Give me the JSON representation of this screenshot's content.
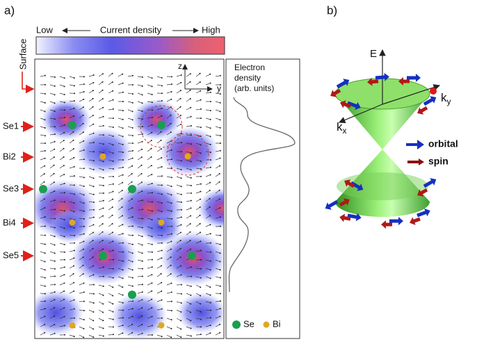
{
  "panel_a": {
    "label": "a)",
    "colorbar": {
      "low": "Low",
      "title": "Current density",
      "high": "High"
    },
    "surface": "Surface",
    "layers": [
      "Se1",
      "Bi2",
      "Se3",
      "Bi4",
      "Se5"
    ],
    "axes": {
      "z": "z",
      "y": "y"
    },
    "electron_density": {
      "lines": [
        "Electron",
        "density",
        "(arb. units)"
      ]
    },
    "legend": [
      "Se",
      "Bi"
    ]
  },
  "panel_b": {
    "label": "b)",
    "axes": {
      "E": "E",
      "ky": {
        "base": "k",
        "sub": "y"
      },
      "kx": {
        "base": "k",
        "sub": "x"
      }
    },
    "legend": [
      "orbital",
      "spin"
    ]
  }
}
